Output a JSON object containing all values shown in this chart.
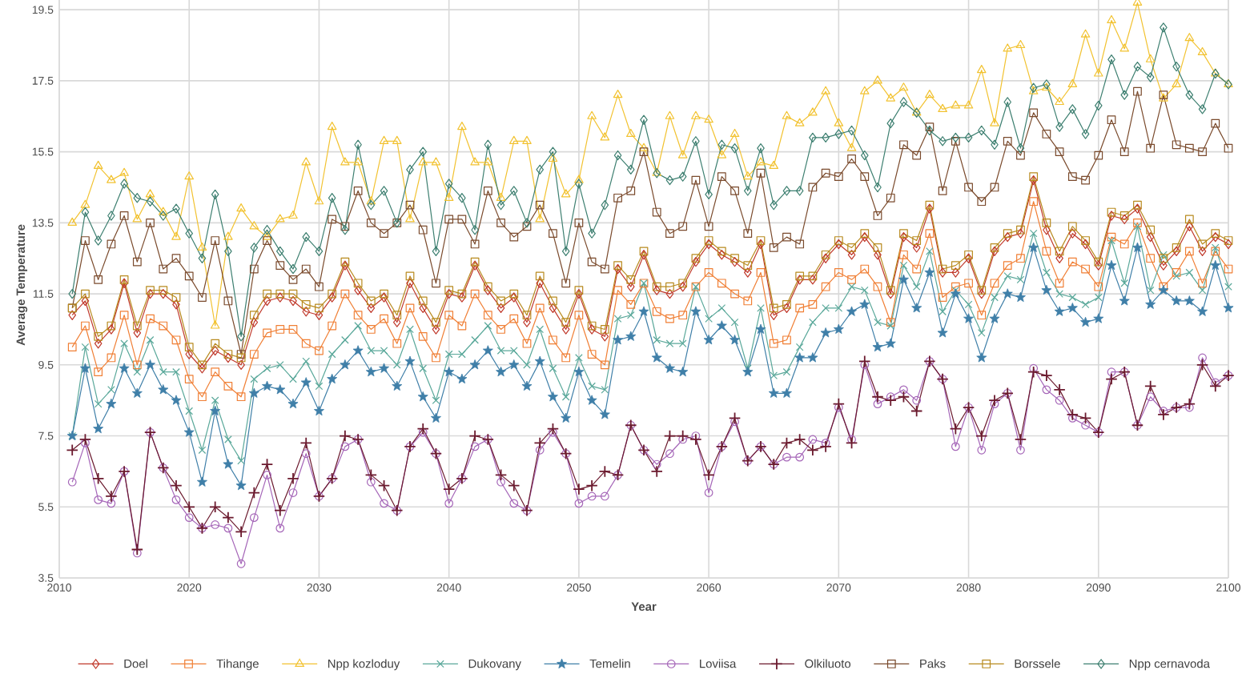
{
  "chart_data": {
    "type": "line",
    "xlabel": "Year",
    "ylabel": "Average Temperature",
    "x": [
      2011,
      2012,
      2013,
      2014,
      2015,
      2016,
      2017,
      2018,
      2019,
      2020,
      2021,
      2022,
      2023,
      2024,
      2025,
      2026,
      2027,
      2028,
      2029,
      2030,
      2031,
      2032,
      2033,
      2034,
      2035,
      2036,
      2037,
      2038,
      2039,
      2040,
      2041,
      2042,
      2043,
      2044,
      2045,
      2046,
      2047,
      2048,
      2049,
      2050,
      2051,
      2052,
      2053,
      2054,
      2055,
      2056,
      2057,
      2058,
      2059,
      2060,
      2061,
      2062,
      2063,
      2064,
      2065,
      2066,
      2067,
      2068,
      2069,
      2070,
      2071,
      2072,
      2073,
      2074,
      2075,
      2076,
      2077,
      2078,
      2079,
      2080,
      2081,
      2082,
      2083,
      2084,
      2085,
      2086,
      2087,
      2088,
      2089,
      2090,
      2091,
      2092,
      2093,
      2094,
      2095,
      2096,
      2097,
      2098,
      2099,
      2100
    ],
    "xlim": [
      2010,
      2100
    ],
    "xticks": [
      2010,
      2020,
      2030,
      2040,
      2050,
      2060,
      2070,
      2080,
      2090,
      2100
    ],
    "ylim": [
      3.5,
      20
    ],
    "yticks": [
      3.5,
      5.5,
      7.5,
      9.5,
      11.5,
      13.5,
      15.5,
      17.5,
      19.5
    ],
    "grid": true,
    "legend": "bottom",
    "series": [
      {
        "name": "Doel",
        "color": "#c0392b",
        "marker": "diamond",
        "values": [
          10.9,
          11.3,
          10.1,
          10.5,
          11.8,
          10.4,
          11.5,
          11.5,
          11.2,
          9.8,
          9.4,
          9.9,
          9.7,
          9.5,
          10.7,
          11.3,
          11.4,
          11.3,
          11.0,
          10.9,
          11.4,
          12.3,
          11.6,
          11.1,
          11.4,
          10.7,
          11.8,
          11.1,
          10.5,
          11.5,
          11.4,
          12.3,
          11.6,
          11.1,
          11.4,
          10.7,
          11.8,
          11.1,
          10.5,
          11.5,
          10.5,
          10.3,
          12.2,
          11.7,
          12.6,
          11.6,
          11.5,
          11.7,
          12.4,
          12.9,
          12.6,
          12.4,
          12.1,
          12.9,
          10.9,
          11.1,
          11.9,
          11.9,
          12.5,
          12.9,
          12.6,
          13.1,
          12.6,
          11.5,
          13.1,
          12.8,
          13.9,
          12.1,
          12.1,
          12.5,
          11.5,
          12.7,
          13.1,
          13.2,
          14.7,
          13.3,
          12.5,
          13.2,
          12.9,
          12.3,
          13.7,
          13.6,
          13.9,
          13.1,
          12.3,
          12.7,
          13.4,
          12.7,
          13.1,
          12.9
        ]
      },
      {
        "name": "Tihange",
        "color": "#f07f35",
        "marker": "square",
        "values": [
          10.0,
          10.6,
          9.3,
          9.7,
          10.9,
          9.5,
          10.8,
          10.6,
          10.2,
          9.1,
          8.6,
          9.3,
          8.9,
          8.6,
          9.8,
          10.4,
          10.5,
          10.5,
          10.1,
          9.9,
          10.6,
          11.5,
          10.9,
          10.5,
          10.8,
          10.1,
          11.1,
          10.3,
          9.7,
          10.9,
          10.6,
          11.5,
          10.9,
          10.5,
          10.8,
          10.1,
          11.1,
          10.2,
          9.7,
          10.9,
          9.8,
          9.5,
          11.6,
          11.2,
          11.8,
          11.0,
          10.8,
          10.9,
          11.7,
          12.1,
          11.8,
          11.5,
          11.3,
          12.1,
          10.1,
          10.2,
          11.1,
          11.2,
          11.7,
          12.1,
          11.9,
          12.2,
          11.7,
          10.7,
          12.6,
          12.2,
          13.2,
          11.4,
          11.7,
          11.8,
          10.9,
          11.8,
          12.3,
          12.5,
          14.1,
          12.7,
          11.8,
          12.4,
          12.2,
          11.7,
          13.1,
          12.9,
          13.5,
          12.5,
          11.7,
          12.1,
          12.7,
          11.8,
          12.7,
          12.2
        ]
      },
      {
        "name": "Npp kozloduy",
        "color": "#f2c230",
        "marker": "triangle",
        "values": [
          13.5,
          14.0,
          15.1,
          14.7,
          14.9,
          13.6,
          14.3,
          13.8,
          13.1,
          14.8,
          12.8,
          10.6,
          13.1,
          13.9,
          13.4,
          13.1,
          13.6,
          13.7,
          15.2,
          14.1,
          16.2,
          15.2,
          15.2,
          14.1,
          15.8,
          15.8,
          13.6,
          15.2,
          15.2,
          14.2,
          16.2,
          15.2,
          15.2,
          14.2,
          15.8,
          15.8,
          13.6,
          15.3,
          14.3,
          14.7,
          16.5,
          15.9,
          17.1,
          16.0,
          15.6,
          14.9,
          16.5,
          15.4,
          16.5,
          16.4,
          15.4,
          16.0,
          14.8,
          15.2,
          15.1,
          16.5,
          16.3,
          16.6,
          17.2,
          16.3,
          15.6,
          17.2,
          17.5,
          17.0,
          17.3,
          16.6,
          17.1,
          16.7,
          16.8,
          16.8,
          17.8,
          16.3,
          18.4,
          18.5,
          17.2,
          17.3,
          16.9,
          17.4,
          18.8,
          17.7,
          19.2,
          18.4,
          19.7,
          18.1,
          17.0,
          17.4,
          18.7,
          18.3,
          17.7,
          17.4
        ]
      },
      {
        "name": "Dukovany",
        "color": "#5aa89a",
        "marker": "cross",
        "values": [
          7.5,
          10.0,
          8.4,
          8.8,
          10.1,
          9.3,
          10.2,
          9.3,
          9.3,
          8.2,
          7.1,
          8.5,
          7.4,
          6.8,
          9.1,
          9.4,
          9.5,
          9.1,
          9.6,
          8.9,
          9.8,
          10.2,
          10.6,
          9.9,
          9.9,
          9.5,
          10.5,
          9.4,
          8.5,
          9.8,
          9.8,
          10.2,
          10.6,
          9.9,
          9.9,
          9.5,
          10.5,
          9.4,
          8.6,
          9.7,
          8.9,
          8.8,
          10.8,
          10.9,
          11.8,
          10.2,
          10.1,
          10.1,
          11.7,
          10.8,
          11.1,
          10.7,
          9.4,
          11.1,
          9.2,
          9.3,
          10.0,
          10.7,
          11.1,
          11.1,
          11.7,
          11.6,
          10.7,
          10.6,
          12.3,
          11.7,
          12.7,
          11.0,
          11.6,
          11.2,
          10.4,
          11.4,
          12.0,
          11.9,
          13.2,
          12.1,
          11.5,
          11.4,
          11.2,
          11.4,
          13.0,
          11.8,
          13.4,
          11.6,
          12.6,
          12.0,
          12.1,
          11.6,
          12.8,
          11.7
        ]
      },
      {
        "name": "Temelin",
        "color": "#3f7fa8",
        "marker": "star",
        "values": [
          7.5,
          9.4,
          7.7,
          8.4,
          9.4,
          8.7,
          9.5,
          8.8,
          8.5,
          7.6,
          6.2,
          8.2,
          6.7,
          6.1,
          8.7,
          8.9,
          8.8,
          8.4,
          9.0,
          8.2,
          9.1,
          9.5,
          9.9,
          9.3,
          9.4,
          8.9,
          9.6,
          8.6,
          8.0,
          9.3,
          9.1,
          9.5,
          9.9,
          9.3,
          9.5,
          8.9,
          9.6,
          8.6,
          8.0,
          9.3,
          8.5,
          8.1,
          10.2,
          10.3,
          11.0,
          9.7,
          9.4,
          9.3,
          11.0,
          10.2,
          10.6,
          10.2,
          9.3,
          10.5,
          8.7,
          8.7,
          9.7,
          9.7,
          10.4,
          10.5,
          11.0,
          11.2,
          10.0,
          10.1,
          11.9,
          11.1,
          12.1,
          10.4,
          11.5,
          10.8,
          9.7,
          10.8,
          11.5,
          11.4,
          12.8,
          11.6,
          11.0,
          11.1,
          10.7,
          10.8,
          12.3,
          11.3,
          12.8,
          11.2,
          11.6,
          11.3,
          11.3,
          11.0,
          12.3,
          11.1
        ]
      },
      {
        "name": "Loviisa",
        "color": "#a566b8",
        "marker": "circle",
        "values": [
          6.2,
          7.3,
          5.7,
          5.6,
          6.5,
          4.2,
          7.6,
          6.6,
          5.7,
          5.2,
          4.9,
          5.0,
          4.9,
          3.9,
          5.2,
          6.4,
          4.9,
          5.9,
          7.0,
          5.8,
          6.3,
          7.2,
          7.4,
          6.2,
          5.6,
          5.4,
          7.2,
          7.6,
          7.0,
          5.6,
          6.3,
          7.2,
          7.4,
          6.2,
          5.6,
          5.4,
          7.1,
          7.6,
          7.0,
          5.6,
          5.8,
          5.8,
          6.4,
          7.8,
          7.1,
          6.7,
          7.0,
          7.4,
          7.5,
          5.9,
          7.2,
          7.9,
          6.8,
          7.2,
          6.7,
          6.9,
          6.9,
          7.4,
          7.3,
          8.3,
          7.4,
          9.5,
          8.4,
          8.6,
          8.8,
          8.5,
          9.6,
          9.1,
          7.2,
          8.3,
          7.1,
          8.4,
          8.7,
          7.1,
          9.4,
          8.8,
          8.5,
          8.0,
          7.8,
          7.6,
          9.3,
          9.3,
          7.8,
          8.6,
          8.2,
          8.3,
          8.3,
          9.7,
          9.0,
          9.2
        ]
      },
      {
        "name": "Olkiluoto",
        "color": "#6b1a2e",
        "marker": "plus",
        "values": [
          7.1,
          7.4,
          6.3,
          5.8,
          6.5,
          4.3,
          7.6,
          6.6,
          6.1,
          5.5,
          4.9,
          5.5,
          5.2,
          4.8,
          5.9,
          6.7,
          5.4,
          6.3,
          7.3,
          5.8,
          6.3,
          7.5,
          7.4,
          6.4,
          6.1,
          5.4,
          7.2,
          7.7,
          7.0,
          6.0,
          6.3,
          7.5,
          7.4,
          6.4,
          6.1,
          5.4,
          7.3,
          7.7,
          7.0,
          6.0,
          6.1,
          6.5,
          6.4,
          7.8,
          7.1,
          6.5,
          7.5,
          7.5,
          7.4,
          6.4,
          7.2,
          8.0,
          6.8,
          7.2,
          6.7,
          7.3,
          7.4,
          7.1,
          7.2,
          8.4,
          7.3,
          9.6,
          8.6,
          8.5,
          8.6,
          8.2,
          9.6,
          9.1,
          7.7,
          8.3,
          7.5,
          8.5,
          8.7,
          7.4,
          9.3,
          9.2,
          8.8,
          8.1,
          8.0,
          7.6,
          9.1,
          9.3,
          7.8,
          8.9,
          8.1,
          8.3,
          8.4,
          9.5,
          8.9,
          9.2
        ]
      },
      {
        "name": "Paks",
        "color": "#7a4a2c",
        "marker": "square",
        "values": [
          11.1,
          13.0,
          11.9,
          12.9,
          13.7,
          12.4,
          13.5,
          12.2,
          12.5,
          12.0,
          11.4,
          13.0,
          11.3,
          9.8,
          12.2,
          13.0,
          12.3,
          11.9,
          12.2,
          11.7,
          13.6,
          13.4,
          14.4,
          13.5,
          13.2,
          13.5,
          14.0,
          13.3,
          11.8,
          13.6,
          13.6,
          12.9,
          14.4,
          13.5,
          13.1,
          13.4,
          14.0,
          13.2,
          11.8,
          13.5,
          12.4,
          12.2,
          14.2,
          14.4,
          15.5,
          13.8,
          13.2,
          13.4,
          14.7,
          13.4,
          14.8,
          14.4,
          13.2,
          14.9,
          12.8,
          13.1,
          12.9,
          14.5,
          14.9,
          14.8,
          15.3,
          14.8,
          13.7,
          14.2,
          15.7,
          15.4,
          16.2,
          14.4,
          15.8,
          14.5,
          14.1,
          14.5,
          15.8,
          15.4,
          16.6,
          16.0,
          15.5,
          14.8,
          14.7,
          15.4,
          16.4,
          15.5,
          17.2,
          15.6,
          17.1,
          15.7,
          15.6,
          15.5,
          16.3,
          15.6
        ]
      },
      {
        "name": "Borssele",
        "color": "#b88a1e",
        "marker": "square",
        "values": [
          11.1,
          11.5,
          10.3,
          10.6,
          11.9,
          10.6,
          11.6,
          11.6,
          11.4,
          10.0,
          9.5,
          10.1,
          9.8,
          9.7,
          10.9,
          11.5,
          11.5,
          11.5,
          11.2,
          11.1,
          11.5,
          12.4,
          11.8,
          11.3,
          11.5,
          10.9,
          12.0,
          11.3,
          10.7,
          11.6,
          11.5,
          12.4,
          11.7,
          11.3,
          11.5,
          10.9,
          12.0,
          11.3,
          10.7,
          11.6,
          10.6,
          10.5,
          12.3,
          11.9,
          12.7,
          11.7,
          11.7,
          11.8,
          12.5,
          13.0,
          12.7,
          12.5,
          12.3,
          13.0,
          11.1,
          11.2,
          12.0,
          12.0,
          12.6,
          13.0,
          12.8,
          13.2,
          12.8,
          11.6,
          13.2,
          13.0,
          14.0,
          12.2,
          12.3,
          12.6,
          11.6,
          12.8,
          13.2,
          13.3,
          14.8,
          13.5,
          12.7,
          13.4,
          13.0,
          12.4,
          13.8,
          13.7,
          14.0,
          13.3,
          12.5,
          12.8,
          13.6,
          12.9,
          13.2,
          13.0
        ]
      },
      {
        "name": "Npp cernavoda",
        "color": "#3d7f70",
        "marker": "diamond",
        "values": [
          11.5,
          13.8,
          13.0,
          13.7,
          14.6,
          14.2,
          14.1,
          13.7,
          13.9,
          13.2,
          12.5,
          14.3,
          12.7,
          10.3,
          12.8,
          13.3,
          12.7,
          12.2,
          13.1,
          12.7,
          14.2,
          13.3,
          15.7,
          14.0,
          14.4,
          13.5,
          15.0,
          15.5,
          12.7,
          14.6,
          14.2,
          13.3,
          15.7,
          14.0,
          14.4,
          13.5,
          15.0,
          15.5,
          12.7,
          14.6,
          13.2,
          14.0,
          15.4,
          15.0,
          16.4,
          14.9,
          14.7,
          14.8,
          15.8,
          14.3,
          15.7,
          15.6,
          14.4,
          15.6,
          14.0,
          14.4,
          14.4,
          15.9,
          15.9,
          16.0,
          16.1,
          15.4,
          14.5,
          16.3,
          16.9,
          16.6,
          16.1,
          15.8,
          15.9,
          15.9,
          16.1,
          15.7,
          16.9,
          15.6,
          17.3,
          17.4,
          16.2,
          16.7,
          16.0,
          16.8,
          18.1,
          17.1,
          17.9,
          17.6,
          19.0,
          17.9,
          17.1,
          16.7,
          17.7,
          17.4
        ]
      }
    ]
  }
}
